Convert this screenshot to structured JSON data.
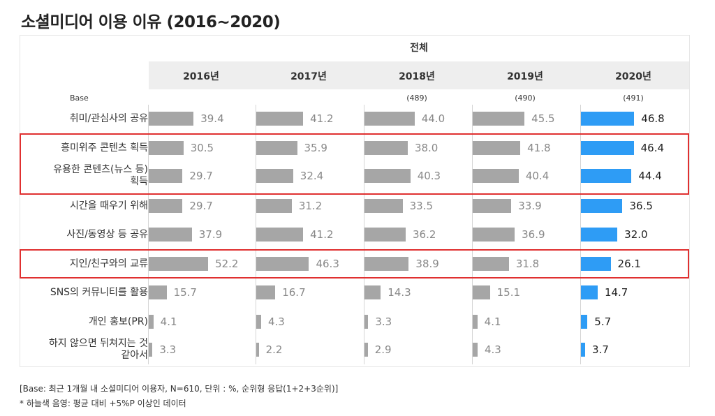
{
  "title": "소셜미디어 이용 이유 (2016~2020)",
  "group_header": "전체",
  "base_label": "Base",
  "colors": {
    "gray_bar": "#a6a6a6",
    "highlight_bar": "#2e9cf5",
    "box": "#e03030"
  },
  "chart_data": {
    "type": "bar",
    "title": "소셜미디어 이용 이유 (2016~2020)",
    "unit": "%",
    "years": [
      "2016년",
      "2017년",
      "2018년",
      "2019년",
      "2020년"
    ],
    "bases": [
      "",
      "",
      "(489)",
      "(490)",
      "(491)"
    ],
    "highlight_year_index": 4,
    "categories": [
      "취미/관심사의 공유",
      "흥미위주 콘텐츠 획득",
      "유용한 콘텐츠(뉴스 등) 획득",
      "시간을 때우기 위해",
      "사진/동영상 등 공유",
      "지인/친구와의 교류",
      "SNS의 커뮤니티를 활용",
      "개인 홍보(PR)",
      "하지 않으면 뒤쳐지는 것 같아서"
    ],
    "series": [
      {
        "name": "2016년",
        "values": [
          39.4,
          30.5,
          29.7,
          29.7,
          37.9,
          52.2,
          15.7,
          4.1,
          3.3
        ]
      },
      {
        "name": "2017년",
        "values": [
          41.2,
          35.9,
          32.4,
          31.2,
          41.2,
          46.3,
          16.7,
          4.3,
          2.2
        ]
      },
      {
        "name": "2018년",
        "values": [
          44.0,
          38.0,
          40.3,
          33.5,
          36.2,
          38.9,
          14.3,
          3.3,
          2.9
        ]
      },
      {
        "name": "2019년",
        "values": [
          45.5,
          41.8,
          40.4,
          33.9,
          36.9,
          31.8,
          15.1,
          4.1,
          4.3
        ]
      },
      {
        "name": "2020년",
        "values": [
          46.8,
          46.4,
          44.4,
          36.5,
          32.0,
          26.1,
          14.7,
          5.7,
          3.7
        ]
      }
    ]
  },
  "highlight_groups": [
    [
      1,
      2
    ],
    [
      5
    ]
  ],
  "notes": [
    "[Base: 최근 1개월 내 소셜미디어 이용자, N=610, 단위 : %, 순위형 응답(1+2+3순위)]",
    "* 하늘색 음영: 평균 대비 +5%P 이상인 데이터"
  ]
}
